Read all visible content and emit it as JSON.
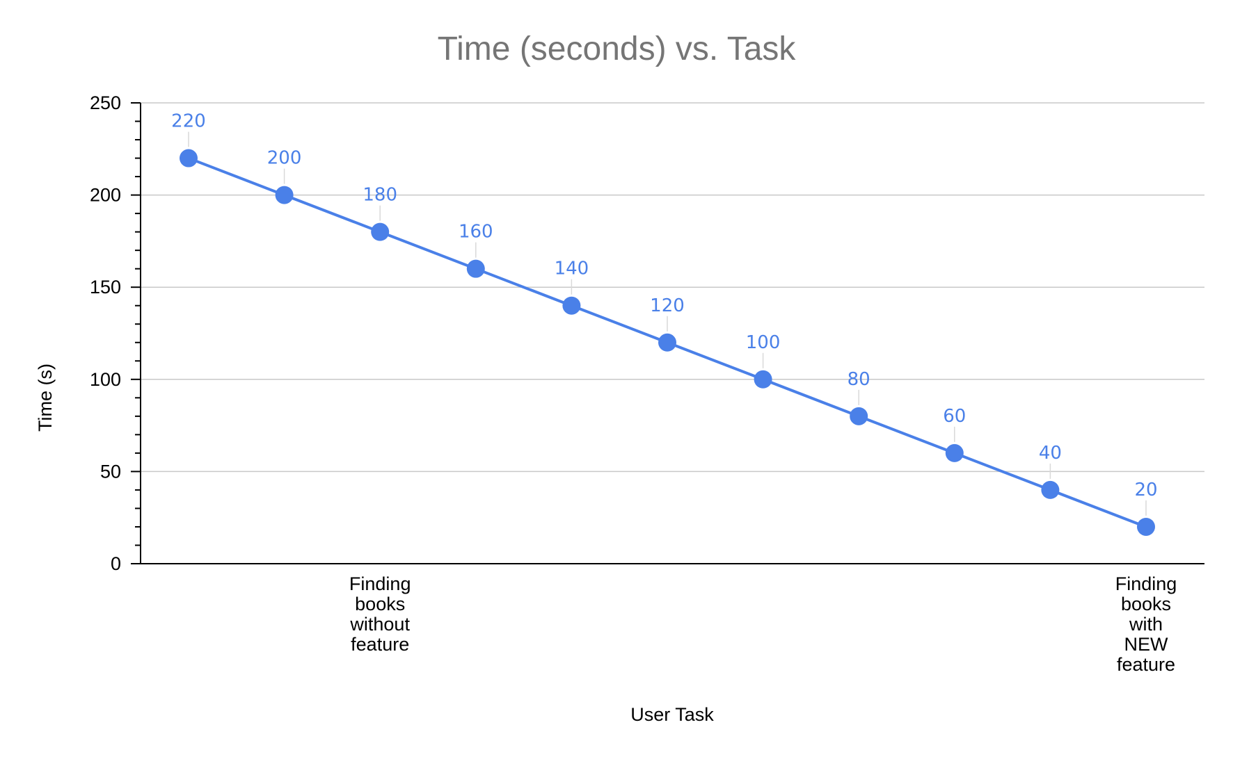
{
  "chart_data": {
    "type": "line",
    "title": "Time (seconds) vs. Task",
    "xlabel": "User Task",
    "ylabel": "Time (s)",
    "ylim": [
      0,
      250
    ],
    "y_ticks": [
      "0",
      "50",
      "100",
      "150",
      "200",
      "250"
    ],
    "grid": true,
    "legend": "none",
    "x": [
      1,
      2,
      3,
      4,
      5,
      6,
      7,
      8,
      9,
      10,
      11
    ],
    "category_labels": [
      {
        "x": 3,
        "lines": [
          "Finding",
          "books",
          "without",
          "feature"
        ]
      },
      {
        "x": 11,
        "lines": [
          "Finding",
          "books",
          "with",
          "NEW",
          "feature"
        ]
      }
    ],
    "series": [
      {
        "values": [
          220,
          200,
          180,
          160,
          140,
          120,
          100,
          80,
          60,
          40,
          20
        ],
        "labels": [
          "220",
          "200",
          "180",
          "160",
          "140",
          "120",
          "100",
          "80",
          "60",
          "40",
          "20"
        ],
        "color": "#4a80e8"
      }
    ],
    "colors": {
      "line": "#4a80e8",
      "data_label": "#4a80e8",
      "title": "#757575",
      "grid": "#c8c8c8",
      "axis": "#000000",
      "leader": "#d9d9d9"
    }
  }
}
